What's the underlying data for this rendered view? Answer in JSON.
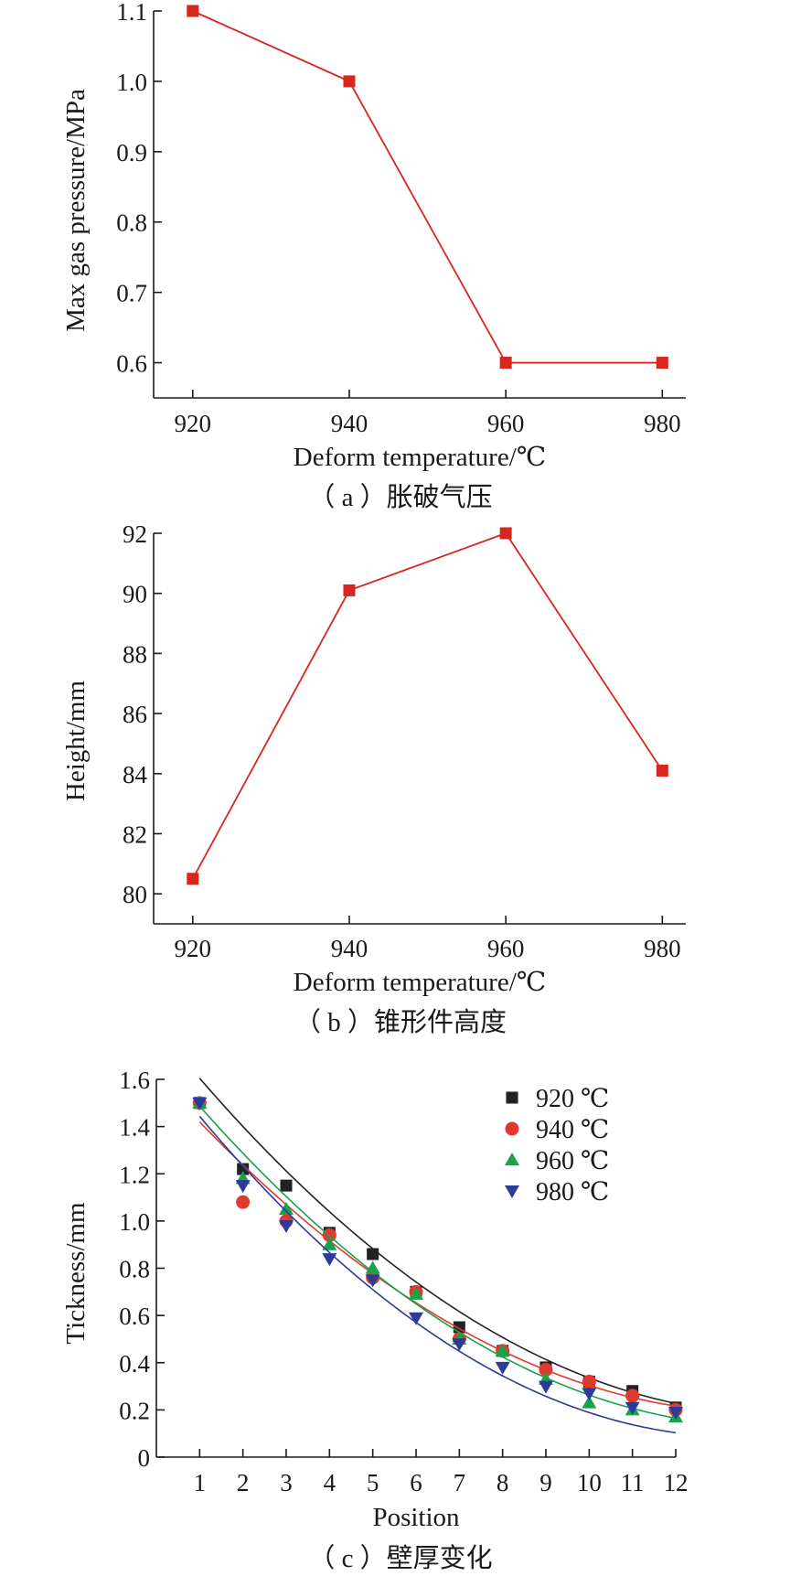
{
  "chart_data": [
    {
      "type": "line",
      "title": "",
      "caption": "（ a ）胀破气压",
      "xlabel": "Deform temperature/℃",
      "ylabel": "Max gas pressure/MPa",
      "x": [
        920,
        940,
        960,
        980
      ],
      "x_ticks": [
        "920",
        "940",
        "960",
        "980"
      ],
      "xlim": [
        915,
        983
      ],
      "ylim": [
        0.55,
        1.1
      ],
      "y_ticks": [
        "0.6",
        "0.7",
        "0.8",
        "0.9",
        "1.0",
        "1.1"
      ],
      "y_tick_values": [
        0.6,
        0.7,
        0.8,
        0.9,
        1.0,
        1.1
      ],
      "series": [
        {
          "values": [
            1.1,
            1.0,
            0.6,
            0.6
          ],
          "color": "#d7261e",
          "marker": "square"
        }
      ],
      "grid": false
    },
    {
      "type": "line",
      "title": "",
      "caption": "（ b ）锥形件高度",
      "xlabel": "Deform temperature/℃",
      "ylabel": "Height/mm",
      "x": [
        920,
        940,
        960,
        980
      ],
      "x_ticks": [
        "920",
        "940",
        "960",
        "980"
      ],
      "xlim": [
        915,
        983
      ],
      "ylim": [
        79,
        92
      ],
      "y_ticks": [
        "80",
        "82",
        "84",
        "86",
        "88",
        "90",
        "92"
      ],
      "y_tick_values": [
        80,
        82,
        84,
        86,
        88,
        90,
        92
      ],
      "series": [
        {
          "values": [
            80.5,
            90.1,
            92.0,
            84.1
          ],
          "color": "#d7261e",
          "marker": "square"
        }
      ],
      "grid": false
    },
    {
      "type": "scatter",
      "title": "",
      "caption": "（ c ）壁厚变化",
      "xlabel": "Position",
      "ylabel": "Tickness/mm",
      "x": [
        1,
        2,
        3,
        4,
        5,
        6,
        7,
        8,
        9,
        10,
        11,
        12
      ],
      "x_ticks": [
        "1",
        "2",
        "3",
        "4",
        "5",
        "6",
        "7",
        "8",
        "9",
        "10",
        "11",
        "12"
      ],
      "xlim": [
        0,
        12
      ],
      "ylim": [
        0,
        1.6
      ],
      "y_ticks": [
        "0",
        "0.2",
        "0.4",
        "0.6",
        "0.8",
        "1.0",
        "1.2",
        "1.4",
        "1.6"
      ],
      "y_tick_values": [
        0,
        0.2,
        0.4,
        0.6,
        0.8,
        1.0,
        1.2,
        1.4,
        1.6
      ],
      "legend_position": "top-right",
      "series": [
        {
          "name": "920 ℃",
          "color": "#222222",
          "marker": "square",
          "values": [
            1.5,
            1.22,
            1.15,
            0.95,
            0.86,
            0.7,
            0.55,
            0.45,
            0.38,
            0.32,
            0.28,
            0.21
          ],
          "fit": [
            0.0079,
            -0.2279,
            1.8246
          ]
        },
        {
          "name": "940 ℃",
          "color": "#e03a2e",
          "marker": "circle",
          "values": [
            1.5,
            1.08,
            1.0,
            0.94,
            0.76,
            0.7,
            0.5,
            0.45,
            0.37,
            0.32,
            0.26,
            0.2
          ],
          "fit": [
            0.0073,
            -0.2043,
            1.6165
          ]
        },
        {
          "name": "960 ℃",
          "color": "#17a34a",
          "marker": "triangle-up",
          "values": [
            1.5,
            1.18,
            1.05,
            0.9,
            0.8,
            0.69,
            0.5,
            0.45,
            0.33,
            0.23,
            0.2,
            0.17
          ],
          "fit": [
            0.0079,
            -0.2228,
            1.7012
          ]
        },
        {
          "name": "980 ℃",
          "color": "#2c3b99",
          "marker": "triangle-down",
          "values": [
            1.5,
            1.15,
            0.98,
            0.84,
            0.75,
            0.59,
            0.48,
            0.38,
            0.3,
            0.27,
            0.21,
            0.19
          ],
          "fit": [
            0.0088,
            -0.2362,
            1.6707
          ]
        }
      ],
      "grid": false
    }
  ]
}
